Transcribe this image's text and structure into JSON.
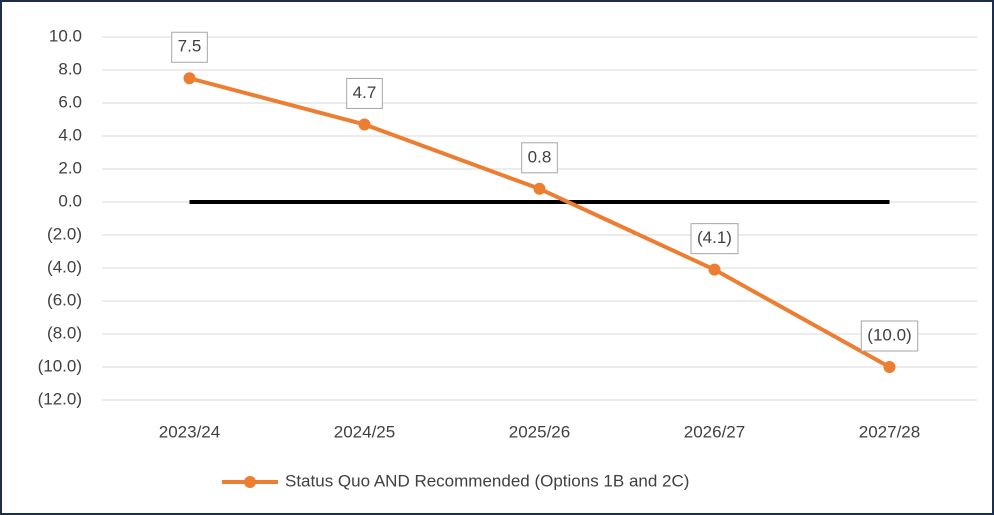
{
  "chart_data": {
    "type": "line",
    "categories": [
      "2023/24",
      "2024/25",
      "2025/26",
      "2026/27",
      "2027/28"
    ],
    "series": [
      {
        "name": "Status Quo AND Recommended (Options 1B and 2C)",
        "color": "#ed7d31",
        "values": [
          7.5,
          4.7,
          0.8,
          -4.1,
          -10.0
        ],
        "value_labels": [
          "7.5",
          "4.7",
          "0.8",
          "(4.1)",
          "(10.0)"
        ]
      }
    ],
    "ylim": [
      -12,
      10
    ],
    "yticks": [
      {
        "value": 10,
        "label": "10.0"
      },
      {
        "value": 8,
        "label": "8.0"
      },
      {
        "value": 6,
        "label": "6.0"
      },
      {
        "value": 4,
        "label": "4.0"
      },
      {
        "value": 2,
        "label": "2.0"
      },
      {
        "value": 0,
        "label": "0.0"
      },
      {
        "value": -2,
        "label": "(2.0)"
      },
      {
        "value": -4,
        "label": "(4.0)"
      },
      {
        "value": -6,
        "label": "(6.0)"
      },
      {
        "value": -8,
        "label": "(8.0)"
      },
      {
        "value": -10,
        "label": "(10.0)"
      },
      {
        "value": -12,
        "label": "(12.0)"
      }
    ],
    "grid": true,
    "zero_line": true,
    "legend": "bottom"
  }
}
